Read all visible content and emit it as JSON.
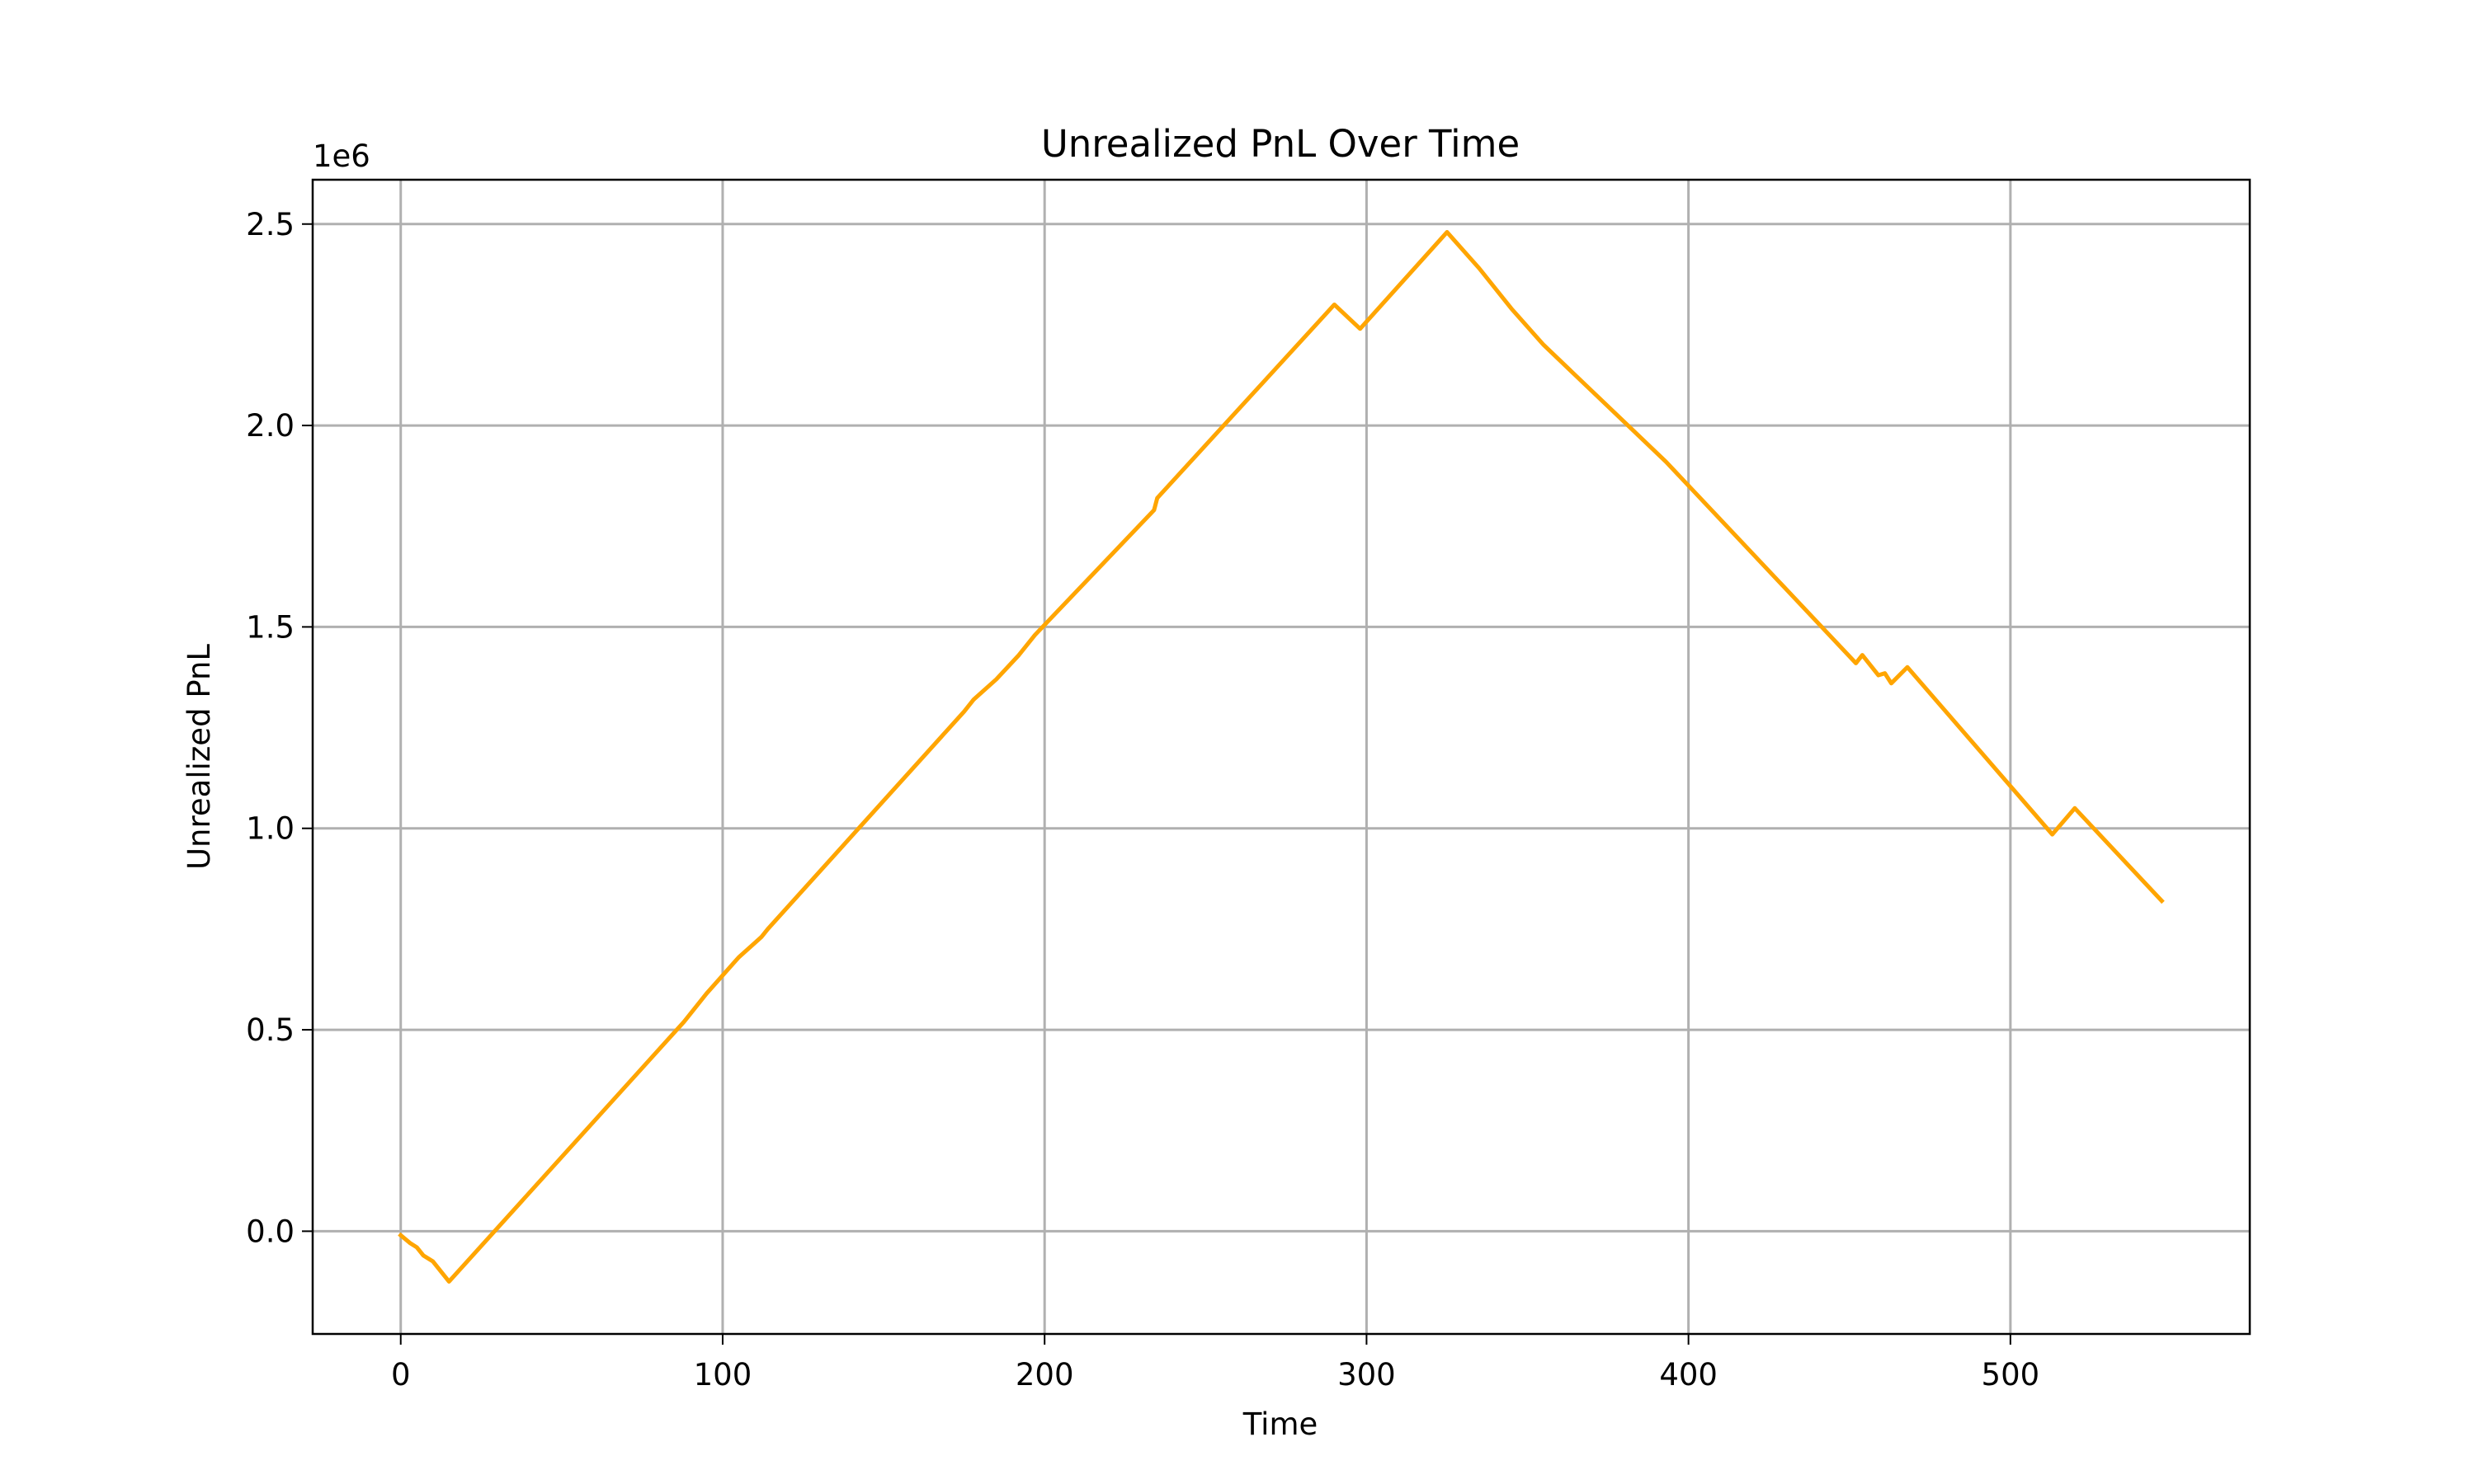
{
  "chart_data": {
    "type": "line",
    "title": "Unrealized PnL Over Time",
    "xlabel": "Time",
    "ylabel": "Unrealized PnL",
    "y_offset_text": "1e6",
    "x": [
      0,
      3,
      5,
      7,
      10,
      15,
      88,
      95,
      105,
      112,
      114,
      175,
      178,
      185,
      192,
      197,
      234,
      235,
      290,
      298,
      325,
      335,
      345,
      355,
      393,
      452,
      454,
      459,
      461,
      463,
      468,
      513,
      520,
      547
    ],
    "values": [
      -10000,
      -30000,
      -40000,
      -60000,
      -75000,
      -125000,
      520000,
      590000,
      680000,
      730000,
      750000,
      1290000,
      1320000,
      1370000,
      1430000,
      1480000,
      1790000,
      1820000,
      2300000,
      2240000,
      2480000,
      2390000,
      2290000,
      2200000,
      1910000,
      1410000,
      1430000,
      1380000,
      1385000,
      1360000,
      1400000,
      985000,
      1050000,
      820000
    ],
    "color": "#ffa500",
    "xlim": [
      -27.35,
      574.35
    ],
    "ylim": [
      -255000,
      2610000
    ],
    "xticks": [
      0,
      100,
      200,
      300,
      400,
      500
    ],
    "yticks": [
      {
        "value": 0,
        "label": "0.0"
      },
      {
        "value": 500000,
        "label": "0.5"
      },
      {
        "value": 1000000,
        "label": "1.0"
      },
      {
        "value": 1500000,
        "label": "1.5"
      },
      {
        "value": 2000000,
        "label": "2.0"
      },
      {
        "value": 2500000,
        "label": "2.5"
      }
    ],
    "grid": true
  }
}
